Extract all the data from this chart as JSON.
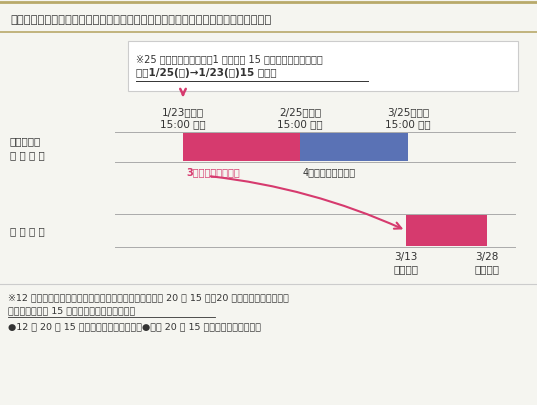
{
  "title": "定期購入の停止・解約の受付時期と反映時期イメージ図【書面による手続きの場合】",
  "bg_color": "#f5f5f0",
  "border_color": "#b8a96a",
  "text_color": "#333333",
  "pink_color": "#d63a6e",
  "blue_color": "#5a72b5",
  "note_box_bg": "#ffffff",
  "note_text_line1": "※25 日が土日祝の場合、1 営業日前 15 時が締切となります。",
  "note_text_line2": "例：1/25(日)→1/23(金)15 時締切",
  "dates": [
    "1/23（金）",
    "2/25（水）",
    "3/25（木）"
  ],
  "date_times": [
    "15:00 〆切",
    "15:00 〆切",
    "15:00 〆切"
  ],
  "left_label1": "停止・解約",
  "left_label2": "受 付 時 期",
  "left_label3": "反 映 時 期",
  "pink_bar_label": "3月末発送分へ反映",
  "blue_bar_label": "4月末発送分へ反映",
  "reflection_dates": [
    "3/13",
    "3/28"
  ],
  "reflection_labels": [
    "振替なし",
    "発送なし"
  ],
  "footnote_line1": "※12 月と４月に解約申請する場合に限り、締切は当月の 20 日 15 時（20 日が土日祝の場合は、",
  "footnote_line2": "その１営業日前 15 時）必着で翌月からの解約",
  "footnote_line3": "●12 月 20 日 15 時必着で１月から解約　●４月 20 日 15 時必着で５月から解約"
}
